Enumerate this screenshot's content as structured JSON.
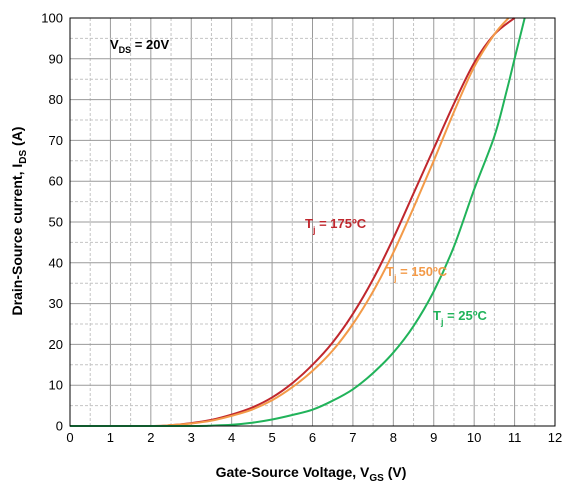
{
  "chart_data": {
    "type": "line",
    "title": "",
    "xlabel": {
      "main": "Gate-Source Voltage, V",
      "sub": "GS",
      "unit": " (V)"
    },
    "ylabel": {
      "main": "Drain-Source current, I",
      "sub": "DS",
      "unit": " (A)"
    },
    "xlim": [
      0,
      12
    ],
    "ylim": [
      0,
      100
    ],
    "x_ticks": [
      "0",
      "1",
      "2",
      "3",
      "4",
      "5",
      "6",
      "7",
      "8",
      "9",
      "10",
      "11",
      "12"
    ],
    "y_ticks": [
      "0",
      "10",
      "20",
      "30",
      "40",
      "50",
      "60",
      "70",
      "80",
      "90",
      "100"
    ],
    "grid": "major solid, minor dashed",
    "legend": "none",
    "condition": {
      "main": "V",
      "sub": "DS",
      "rest": " = 20V"
    },
    "series": [
      {
        "name": {
          "main": "T",
          "sub": "j",
          "rest": " = 175ºC"
        },
        "color": "#c0272d",
        "x": [
          0,
          2.0,
          2.5,
          3.0,
          3.5,
          4.0,
          4.5,
          5.0,
          5.5,
          6.0,
          6.5,
          7.0,
          7.5,
          8.0,
          8.5,
          9.0,
          9.5,
          10.0,
          10.5,
          11.0
        ],
        "y": [
          0,
          0,
          0.2,
          0.7,
          1.5,
          2.8,
          4.5,
          7.0,
          10.5,
          15.0,
          20.5,
          27.5,
          36.0,
          46.0,
          57.0,
          68.0,
          79.0,
          89.0,
          96.0,
          100.0
        ]
      },
      {
        "name": {
          "main": "T",
          "sub": "j",
          "rest": " = 150ºC"
        },
        "color": "#f39a48",
        "x": [
          0,
          2.0,
          2.5,
          3.0,
          3.5,
          4.0,
          4.5,
          5.0,
          5.5,
          6.0,
          6.5,
          7.0,
          7.5,
          8.0,
          8.5,
          9.0,
          9.5,
          10.0,
          10.5,
          10.85
        ],
        "y": [
          0,
          0,
          0.2,
          0.6,
          1.3,
          2.5,
          4.0,
          6.3,
          9.5,
          13.5,
          18.5,
          25.0,
          33.0,
          42.5,
          53.5,
          65.0,
          77.0,
          88.0,
          96.0,
          100.0
        ]
      },
      {
        "name": {
          "main": "T",
          "sub": "j",
          "rest": " = 25ºC"
        },
        "color": "#21b35a",
        "x": [
          0,
          3.0,
          3.5,
          4.0,
          4.5,
          5.0,
          5.5,
          6.0,
          6.5,
          7.0,
          7.5,
          8.0,
          8.5,
          9.0,
          9.5,
          10.0,
          10.5,
          10.8,
          11.0,
          11.25
        ],
        "y": [
          0,
          0,
          0.1,
          0.3,
          0.8,
          1.6,
          2.7,
          4.0,
          6.2,
          9.0,
          13.0,
          18.0,
          24.5,
          33.0,
          44.0,
          58.0,
          71.0,
          82.0,
          90.0,
          100.0
        ]
      }
    ]
  }
}
